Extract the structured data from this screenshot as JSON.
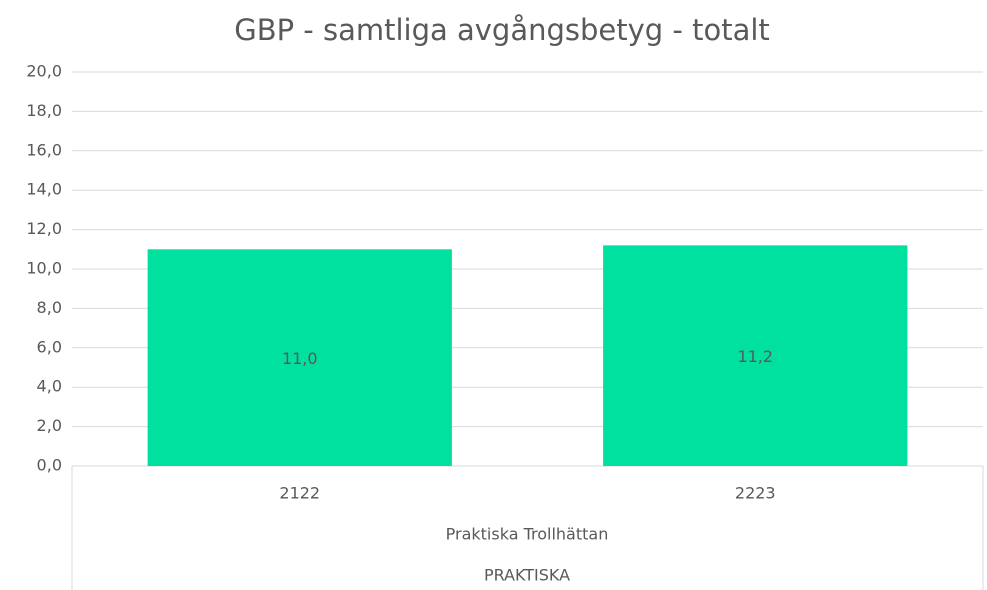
{
  "chart_data": {
    "type": "bar",
    "title": "GBP - samtliga avgångsbetyg - totalt",
    "categories": [
      "2122",
      "2223"
    ],
    "values": [
      11.0,
      11.2
    ],
    "value_labels": [
      "11,0",
      "11,2"
    ],
    "group_labels": [
      "Praktiska Trollhättan",
      "PRAKTISKA"
    ],
    "color": "#00e09e",
    "ylim": [
      0,
      20
    ],
    "yticks": [
      {
        "value": 0,
        "label": "0,0"
      },
      {
        "value": 2,
        "label": "2,0"
      },
      {
        "value": 4,
        "label": "4,0"
      },
      {
        "value": 6,
        "label": "6,0"
      },
      {
        "value": 8,
        "label": "8,0"
      },
      {
        "value": 10,
        "label": "10,0"
      },
      {
        "value": 12,
        "label": "12,0"
      },
      {
        "value": 14,
        "label": "14,0"
      },
      {
        "value": 16,
        "label": "16,0"
      },
      {
        "value": 18,
        "label": "18,0"
      },
      {
        "value": 20,
        "label": "20,0"
      }
    ],
    "grid": true
  }
}
